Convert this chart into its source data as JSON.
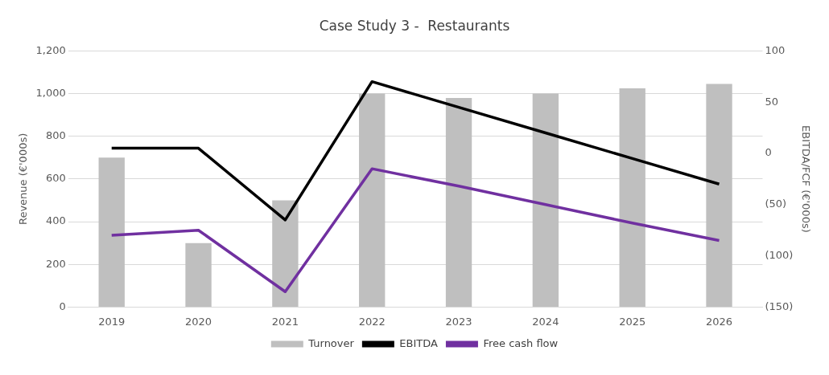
{
  "chart_data": {
    "type": "bar",
    "title": "Case Study 3 -  Restaurants",
    "ylabel": "Revenue (€'000s)",
    "y2label": "EBITDA/FCF (€'000s)",
    "categories": [
      "2019",
      "2020",
      "2021",
      "2022",
      "2023",
      "2024",
      "2025",
      "2026"
    ],
    "series": [
      {
        "name": "Turnover",
        "color": "#bfbfbf",
        "values": [
          700,
          300,
          500,
          1000,
          980,
          1000,
          1025,
          1045
        ]
      },
      {
        "name": "EBITDA",
        "type": "line",
        "axis": "y2",
        "color": "#000000",
        "values": [
          5,
          5,
          -65,
          70,
          45,
          20,
          -5,
          -30
        ]
      },
      {
        "name": "Free cash flow",
        "type": "line",
        "axis": "y2",
        "color": "#7030a0",
        "values": [
          -80,
          -75,
          -135,
          -15,
          -32,
          -50,
          -68,
          -85
        ]
      }
    ],
    "ylim": [
      0,
      1200
    ],
    "yticks": [
      0,
      200,
      400,
      600,
      800,
      {
        "value": 1000,
        "label": "1,000"
      },
      {
        "value": 1200,
        "label": "1,200"
      }
    ],
    "y2lim": [
      -150,
      100
    ],
    "y2ticks": [
      {
        "value": -150,
        "label": "(150)"
      },
      {
        "value": -100,
        "label": "(100)"
      },
      {
        "value": -50,
        "label": "(50)"
      },
      0,
      50,
      100
    ],
    "grid": "y",
    "legend": "bottom",
    "marker": "none"
  }
}
